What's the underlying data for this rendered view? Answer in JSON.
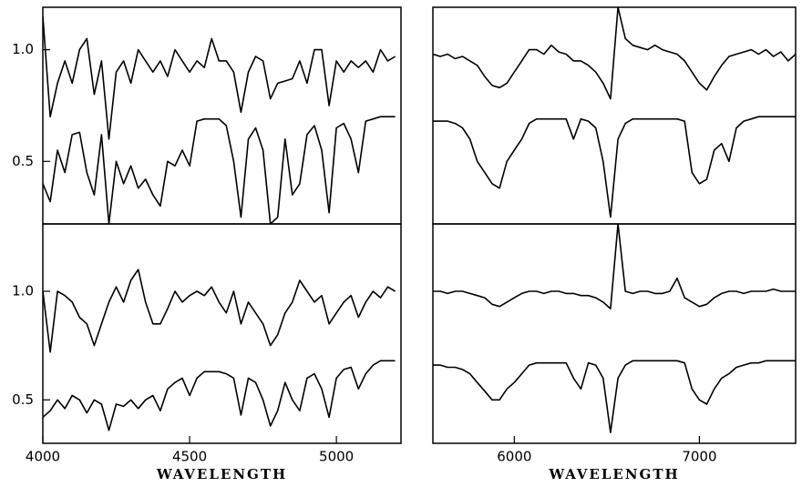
{
  "chart_data": [
    {
      "type": "line",
      "x": [
        4000,
        4025,
        4050,
        4075,
        4100,
        4125,
        4150,
        4175,
        4200,
        4225,
        4250,
        4275,
        4300,
        4325,
        4350,
        4375,
        4400,
        4425,
        4450,
        4475,
        4500,
        4525,
        4550,
        4575,
        4600,
        4625,
        4650,
        4675,
        4700,
        4725,
        4750,
        4775,
        4800,
        4825,
        4850,
        4875,
        4900,
        4925,
        4950,
        4975,
        5000,
        5025,
        5050,
        5075,
        5100,
        5125,
        5150,
        5175,
        5200
      ],
      "xlim": [
        4000,
        5220
      ],
      "ylim": [
        0.22,
        1.19
      ],
      "yticks": [
        0.5,
        {
          "value": 1,
          "label": "1.0"
        }
      ],
      "series": [
        {
          "color": "#000",
          "values": [
            1.15,
            0.7,
            0.85,
            0.95,
            0.85,
            1.0,
            1.05,
            0.8,
            0.95,
            0.6,
            0.9,
            0.95,
            0.85,
            1.0,
            0.95,
            0.9,
            0.95,
            0.88,
            1.0,
            0.95,
            0.9,
            0.95,
            0.92,
            1.05,
            0.95,
            0.95,
            0.9,
            0.72,
            0.9,
            0.97,
            0.95,
            0.78,
            0.85,
            0.86,
            0.87,
            0.95,
            0.85,
            1.0,
            1.0,
            0.75,
            0.95,
            0.9,
            0.95,
            0.92,
            0.95,
            0.9,
            1.0,
            0.95,
            0.97
          ]
        },
        {
          "color": "#000",
          "values": [
            0.4,
            0.32,
            0.55,
            0.45,
            0.62,
            0.63,
            0.45,
            0.35,
            0.62,
            0.22,
            0.5,
            0.4,
            0.48,
            0.38,
            0.42,
            0.35,
            0.3,
            0.5,
            0.48,
            0.55,
            0.48,
            0.68,
            0.69,
            0.69,
            0.69,
            0.66,
            0.5,
            0.25,
            0.6,
            0.65,
            0.55,
            0.22,
            0.25,
            0.6,
            0.35,
            0.4,
            0.62,
            0.66,
            0.55,
            0.27,
            0.65,
            0.67,
            0.6,
            0.45,
            0.68,
            0.69,
            0.7,
            0.7,
            0.7
          ]
        }
      ]
    },
    {
      "type": "line",
      "x": [
        5560,
        5600,
        5640,
        5680,
        5720,
        5760,
        5800,
        5840,
        5880,
        5920,
        5960,
        6000,
        6040,
        6080,
        6120,
        6160,
        6200,
        6240,
        6280,
        6320,
        6360,
        6400,
        6440,
        6480,
        6520,
        6560,
        6600,
        6640,
        6680,
        6720,
        6760,
        6800,
        6840,
        6880,
        6920,
        6960,
        7000,
        7040,
        7080,
        7120,
        7160,
        7200,
        7240,
        7280,
        7320,
        7360,
        7400,
        7440,
        7480,
        7520
      ],
      "xlim": [
        5560,
        7520
      ],
      "ylim": [
        0.22,
        1.19
      ],
      "series": [
        {
          "color": "#000",
          "values": [
            0.98,
            0.97,
            0.98,
            0.96,
            0.97,
            0.95,
            0.93,
            0.88,
            0.84,
            0.83,
            0.85,
            0.9,
            0.95,
            1.0,
            1.0,
            0.98,
            1.02,
            0.99,
            0.98,
            0.95,
            0.95,
            0.93,
            0.9,
            0.85,
            0.78,
            1.19,
            1.05,
            1.02,
            1.01,
            1.0,
            1.02,
            1.0,
            0.99,
            0.98,
            0.95,
            0.9,
            0.85,
            0.82,
            0.88,
            0.93,
            0.97,
            0.98,
            0.99,
            1.0,
            0.98,
            1.0,
            0.97,
            0.99,
            0.95,
            0.98
          ]
        },
        {
          "color": "#000",
          "values": [
            0.68,
            0.68,
            0.68,
            0.67,
            0.65,
            0.6,
            0.5,
            0.45,
            0.4,
            0.38,
            0.5,
            0.55,
            0.6,
            0.67,
            0.69,
            0.69,
            0.69,
            0.69,
            0.69,
            0.6,
            0.69,
            0.68,
            0.65,
            0.5,
            0.25,
            0.6,
            0.67,
            0.69,
            0.69,
            0.69,
            0.69,
            0.69,
            0.69,
            0.69,
            0.68,
            0.45,
            0.4,
            0.42,
            0.55,
            0.58,
            0.5,
            0.65,
            0.68,
            0.69,
            0.7,
            0.7,
            0.7,
            0.7,
            0.7,
            0.7
          ]
        }
      ]
    },
    {
      "type": "line",
      "x": [
        4000,
        4025,
        4050,
        4075,
        4100,
        4125,
        4150,
        4175,
        4200,
        4225,
        4250,
        4275,
        4300,
        4325,
        4350,
        4375,
        4400,
        4425,
        4450,
        4475,
        4500,
        4525,
        4550,
        4575,
        4600,
        4625,
        4650,
        4675,
        4700,
        4725,
        4750,
        4775,
        4800,
        4825,
        4850,
        4875,
        4900,
        4925,
        4950,
        4975,
        5000,
        5025,
        5050,
        5075,
        5100,
        5125,
        5150,
        5175,
        5200
      ],
      "xlim": [
        4000,
        5220
      ],
      "ylim": [
        0.3,
        1.31
      ],
      "yticks": [
        0.5,
        {
          "value": 1,
          "label": "1.0"
        }
      ],
      "xticks": [
        4000,
        4500,
        5000
      ],
      "xlabel": "WAVELENGTH",
      "series": [
        {
          "color": "#000",
          "values": [
            1.0,
            0.72,
            1.0,
            0.98,
            0.95,
            0.88,
            0.85,
            0.75,
            0.85,
            0.95,
            1.02,
            0.95,
            1.05,
            1.1,
            0.95,
            0.85,
            0.85,
            0.92,
            1.0,
            0.95,
            0.98,
            1.0,
            0.98,
            1.02,
            0.95,
            0.9,
            1.0,
            0.85,
            0.95,
            0.9,
            0.85,
            0.75,
            0.8,
            0.9,
            0.95,
            1.05,
            1.0,
            0.95,
            0.98,
            0.85,
            0.9,
            0.95,
            0.98,
            0.88,
            0.95,
            1.0,
            0.97,
            1.02,
            1.0
          ]
        },
        {
          "color": "#000",
          "values": [
            0.42,
            0.45,
            0.5,
            0.46,
            0.52,
            0.5,
            0.44,
            0.5,
            0.48,
            0.36,
            0.48,
            0.47,
            0.5,
            0.46,
            0.5,
            0.52,
            0.45,
            0.55,
            0.58,
            0.6,
            0.52,
            0.6,
            0.63,
            0.63,
            0.63,
            0.62,
            0.6,
            0.43,
            0.6,
            0.58,
            0.5,
            0.38,
            0.45,
            0.58,
            0.5,
            0.45,
            0.6,
            0.62,
            0.55,
            0.42,
            0.6,
            0.64,
            0.65,
            0.55,
            0.62,
            0.66,
            0.68,
            0.68,
            0.68
          ]
        }
      ]
    },
    {
      "type": "line",
      "x": [
        5560,
        5600,
        5640,
        5680,
        5720,
        5760,
        5800,
        5840,
        5880,
        5920,
        5960,
        6000,
        6040,
        6080,
        6120,
        6160,
        6200,
        6240,
        6280,
        6320,
        6360,
        6400,
        6440,
        6480,
        6520,
        6560,
        6600,
        6640,
        6680,
        6720,
        6760,
        6800,
        6840,
        6880,
        6920,
        6960,
        7000,
        7040,
        7080,
        7120,
        7160,
        7200,
        7240,
        7280,
        7320,
        7360,
        7400,
        7440,
        7480,
        7520
      ],
      "xlim": [
        5560,
        7520
      ],
      "ylim": [
        0.3,
        1.31
      ],
      "xticks": [
        6000,
        7000
      ],
      "xlabel": "WAVELENGTH",
      "series": [
        {
          "color": "#000",
          "values": [
            1.0,
            1.0,
            0.99,
            1.0,
            1.0,
            0.99,
            0.98,
            0.97,
            0.94,
            0.93,
            0.95,
            0.97,
            0.99,
            1.0,
            1.0,
            0.99,
            1.0,
            1.0,
            0.99,
            0.99,
            0.98,
            0.98,
            0.97,
            0.95,
            0.92,
            1.31,
            1.0,
            0.99,
            1.0,
            1.0,
            0.99,
            0.99,
            1.0,
            1.06,
            0.97,
            0.95,
            0.93,
            0.94,
            0.97,
            0.99,
            1.0,
            1.0,
            0.99,
            1.0,
            1.0,
            1.0,
            1.01,
            1.0,
            1.0,
            1.0
          ]
        },
        {
          "color": "#000",
          "values": [
            0.66,
            0.66,
            0.65,
            0.65,
            0.64,
            0.62,
            0.58,
            0.54,
            0.5,
            0.5,
            0.55,
            0.58,
            0.62,
            0.66,
            0.67,
            0.67,
            0.67,
            0.67,
            0.67,
            0.6,
            0.55,
            0.67,
            0.66,
            0.6,
            0.35,
            0.6,
            0.66,
            0.68,
            0.68,
            0.68,
            0.68,
            0.68,
            0.68,
            0.68,
            0.67,
            0.55,
            0.5,
            0.48,
            0.55,
            0.6,
            0.62,
            0.65,
            0.66,
            0.67,
            0.67,
            0.68,
            0.68,
            0.68,
            0.68,
            0.68
          ]
        }
      ]
    }
  ]
}
